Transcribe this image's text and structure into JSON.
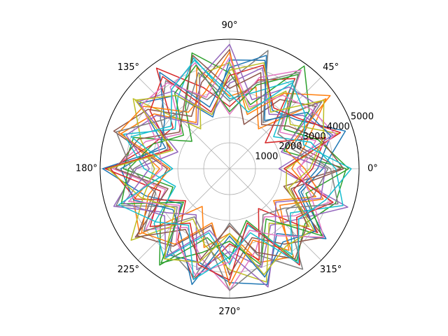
{
  "chart_data": {
    "type": "line",
    "projection": "polar",
    "title": "",
    "theta_tick_labels": [
      "0°",
      "45°",
      "90°",
      "135°",
      "180°",
      "225°",
      "270°",
      "315°"
    ],
    "theta_ticks_deg": [
      0,
      45,
      90,
      135,
      180,
      225,
      270,
      315
    ],
    "r_tick_labels": [
      "1000",
      "2000",
      "3000",
      "4000",
      "5000"
    ],
    "r_ticks": [
      1000,
      2000,
      3000,
      4000,
      5000
    ],
    "rlim": [
      0,
      5000
    ],
    "r_label_angle_deg": 22.5,
    "grid": true,
    "legend": "none",
    "colors": [
      "#1f77b4",
      "#ff7f0e",
      "#2ca02c",
      "#d62728",
      "#9467bd",
      "#8c564b",
      "#e377c2",
      "#7f7f7f",
      "#bcbd22",
      "#17becf"
    ],
    "theta_vertices_deg": [
      0,
      18,
      36,
      54,
      72,
      90,
      108,
      126,
      144,
      162,
      180,
      198,
      216,
      234,
      252,
      270,
      288,
      306,
      324,
      342,
      360
    ],
    "series": [
      {
        "r": [
          3600,
          4700,
          3200,
          2800,
          4400,
          4200,
          2100,
          3500,
          4300,
          2600,
          4900,
          3400,
          2300,
          4100,
          3800,
          4400,
          4700,
          3100,
          4600,
          2900,
          3600
        ]
      },
      {
        "r": [
          2400,
          3100,
          4600,
          1900,
          3300,
          2800,
          4100,
          2200,
          3600,
          4400,
          2700,
          3900,
          4300,
          1800,
          3200,
          2500,
          3800,
          4200,
          2100,
          3500,
          2400
        ]
      },
      {
        "r": [
          4500,
          2200,
          3800,
          4900,
          2600,
          3700,
          4700,
          2900,
          1800,
          3900,
          4100,
          2300,
          3300,
          4600,
          2800,
          3500,
          2100,
          4400,
          3600,
          4300,
          4500
        ]
      },
      {
        "r": [
          3200,
          3900,
          1700,
          4300,
          3600,
          2400,
          3300,
          4800,
          2700,
          3100,
          4600,
          3800,
          2100,
          3400,
          4500,
          2900,
          3700,
          1900,
          4200,
          2600,
          3200
        ]
      },
      {
        "r": [
          1900,
          4200,
          3500,
          2600,
          4100,
          3300,
          2200,
          3700,
          4400,
          2100,
          3600,
          4700,
          2900,
          2200,
          4100,
          3200,
          4000,
          2700,
          3300,
          4800,
          1900
        ]
      },
      {
        "r": [
          4300,
          2800,
          4100,
          3300,
          1800,
          4600,
          3500,
          2500,
          3900,
          4700,
          2400,
          3100,
          4400,
          3700,
          2300,
          4100,
          2800,
          3600,
          4500,
          2200,
          4300
        ]
      },
      {
        "r": [
          2700,
          3500,
          2400,
          4700,
          3700,
          2100,
          4300,
          3900,
          2300,
          3400,
          4500,
          2600,
          4000,
          2800,
          3600,
          4700,
          3300,
          2300,
          3100,
          4100,
          2700
        ]
      },
      {
        "r": [
          3800,
          2500,
          4400,
          2200,
          4800,
          3400,
          2800,
          4200,
          3300,
          2500,
          3700,
          4600,
          2500,
          3900,
          4400,
          2100,
          3500,
          4800,
          2700,
          3400,
          3800
        ]
      },
      {
        "r": [
          2200,
          4400,
          2900,
          3700,
          2400,
          4100,
          3800,
          1900,
          4600,
          3600,
          2900,
          3500,
          4700,
          2400,
          3100,
          3900,
          4600,
          2600,
          3800,
          2300,
          2200
        ]
      },
      {
        "r": [
          4100,
          3300,
          2100,
          4200,
          3100,
          2700,
          4500,
          3400,
          2600,
          4300,
          3300,
          2200,
          3600,
          4300,
          2600,
          3700,
          2300,
          4100,
          2900,
          4600,
          4100
        ]
      },
      {
        "r": [
          3400,
          4100,
          3700,
          2300,
          4600,
          3900,
          2500,
          4600,
          3100,
          2800,
          4200,
          3900,
          2700,
          3200,
          4700,
          2600,
          4400,
          3500,
          4100,
          2800,
          3400
        ]
      },
      {
        "r": [
          2900,
          2300,
          4800,
          3600,
          2200,
          4500,
          3100,
          2700,
          4100,
          4500,
          2300,
          3300,
          4200,
          3600,
          2200,
          4500,
          2900,
          3900,
          2400,
          3800,
          2900
        ]
      },
      {
        "r": [
          4600,
          3600,
          2600,
          4500,
          3400,
          2200,
          4200,
          3600,
          2200,
          3100,
          3900,
          4400,
          2200,
          4500,
          3400,
          2800,
          3900,
          2400,
          4400,
          3100,
          4600
        ]
      },
      {
        "r": [
          2100,
          4500,
          3300,
          2900,
          4200,
          3600,
          2300,
          4400,
          3800,
          2400,
          4800,
          2800,
          3800,
          2600,
          3900,
          4300,
          2200,
          4600,
          3200,
          4200,
          2100
        ]
      },
      {
        "r": [
          3700,
          2100,
          4200,
          3900,
          2800,
          4800,
          3700,
          2100,
          3500,
          4200,
          3100,
          4300,
          3100,
          4200,
          2500,
          3300,
          4800,
          3000,
          2200,
          3700,
          3700
        ]
      },
      {
        "r": [
          4400,
          3700,
          2800,
          2100,
          3900,
          3100,
          4600,
          3000,
          2400,
          3700,
          4400,
          2500,
          4500,
          2900,
          3700,
          2200,
          3400,
          4300,
          3700,
          2500,
          4400
        ]
      },
      {
        "r": [
          2600,
          4300,
          3900,
          3500,
          2500,
          4300,
          2900,
          4100,
          4200,
          2900,
          2600,
          4100,
          2400,
          3500,
          4300,
          3600,
          2500,
          3200,
          4500,
          3300,
          2600
        ]
      },
      {
        "r": [
          3900,
          2700,
          2300,
          4600,
          3500,
          2600,
          3900,
          2800,
          3200,
          4600,
          3800,
          3000,
          4100,
          2300,
          2900,
          4700,
          3900,
          2200,
          2600,
          4400,
          3900
        ]
      },
      {
        "r": [
          3100,
          3800,
          4500,
          2700,
          4300,
          3800,
          2200,
          3500,
          4500,
          2300,
          4700,
          3600,
          2600,
          4300,
          3800,
          2500,
          4300,
          3700,
          4000,
          2400,
          3100
        ]
      },
      {
        "r": [
          4700,
          3000,
          3600,
          4100,
          2300,
          2900,
          4400,
          3800,
          2800,
          4000,
          2200,
          4500,
          3500,
          2700,
          4500,
          3400,
          2600,
          4500,
          3300,
          3900,
          4700
        ]
      }
    ]
  }
}
